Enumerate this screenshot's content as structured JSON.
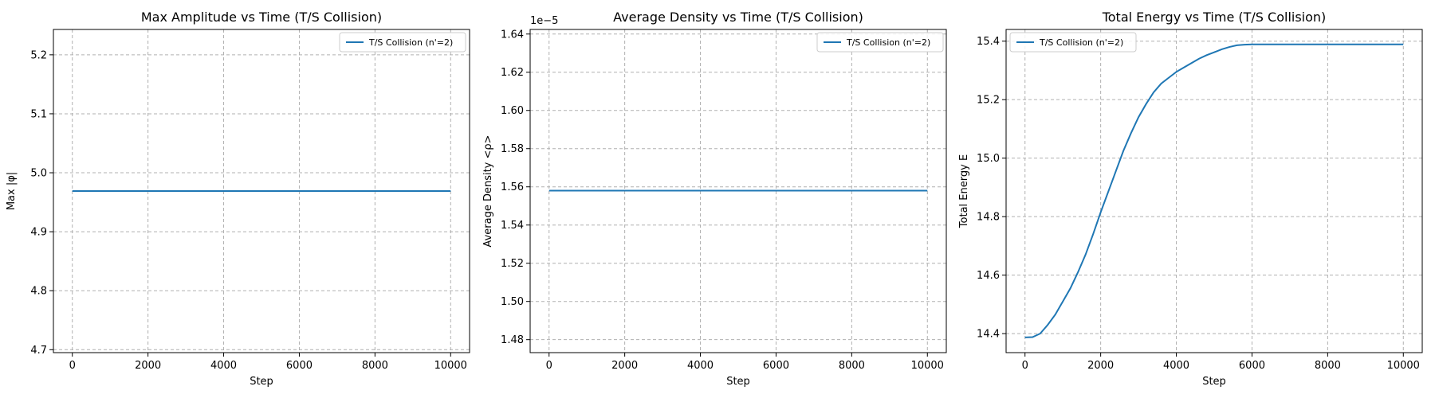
{
  "colors": {
    "series": "#1f77b4"
  },
  "chart_data": [
    {
      "type": "line",
      "title": "Max Amplitude vs Time (T/S Collision)",
      "xlabel": "Step",
      "ylabel": "Max |φ|",
      "xlim": [
        -500,
        10500
      ],
      "ylim": [
        4.695,
        5.243
      ],
      "xticks": [
        0,
        2000,
        4000,
        6000,
        8000,
        10000
      ],
      "xtick_labels": [
        "0",
        "2000",
        "4000",
        "6000",
        "8000",
        "10000"
      ],
      "yticks": [
        4.7,
        4.8,
        4.9,
        5.0,
        5.1,
        5.2
      ],
      "ytick_labels": [
        "4.7",
        "4.8",
        "4.9",
        "5.0",
        "5.1",
        "5.2"
      ],
      "grid": true,
      "legend_position": "upper-right",
      "series": [
        {
          "name": "T/S Collision (n'=2)",
          "x": [
            0,
            10000
          ],
          "y": [
            4.969,
            4.969
          ]
        }
      ]
    },
    {
      "type": "line",
      "title": "Average Density vs Time (T/S Collision)",
      "xlabel": "Step",
      "ylabel": "Average Density <ρ>",
      "offset_text": "1e−5",
      "xlim": [
        -500,
        10500
      ],
      "ylim": [
        1.4732,
        1.6424
      ],
      "xticks": [
        0,
        2000,
        4000,
        6000,
        8000,
        10000
      ],
      "xtick_labels": [
        "0",
        "2000",
        "4000",
        "6000",
        "8000",
        "10000"
      ],
      "yticks": [
        1.48,
        1.5,
        1.52,
        1.54,
        1.56,
        1.58,
        1.6,
        1.62,
        1.64
      ],
      "ytick_labels": [
        "1.48",
        "1.50",
        "1.52",
        "1.54",
        "1.56",
        "1.58",
        "1.60",
        "1.62",
        "1.64"
      ],
      "grid": true,
      "legend_position": "upper-right",
      "series": [
        {
          "name": "T/S Collision (n'=2)",
          "x": [
            0,
            10000
          ],
          "y": [
            1.558,
            1.558
          ]
        }
      ]
    },
    {
      "type": "line",
      "title": "Total Energy vs Time (T/S Collision)",
      "xlabel": "Step",
      "ylabel": "Total Energy E",
      "xlim": [
        -500,
        10500
      ],
      "ylim": [
        14.335,
        15.44
      ],
      "xticks": [
        0,
        2000,
        4000,
        6000,
        8000,
        10000
      ],
      "xtick_labels": [
        "0",
        "2000",
        "4000",
        "6000",
        "8000",
        "10000"
      ],
      "yticks": [
        14.4,
        14.6,
        14.8,
        15.0,
        15.2,
        15.4
      ],
      "ytick_labels": [
        "14.4",
        "14.6",
        "14.8",
        "15.0",
        "15.2",
        "15.4"
      ],
      "grid": true,
      "legend_position": "upper-left",
      "series": [
        {
          "name": "T/S Collision (n'=2)",
          "x": [
            0,
            200,
            400,
            600,
            800,
            1000,
            1200,
            1400,
            1600,
            1800,
            2000,
            2200,
            2400,
            2600,
            2800,
            3000,
            3200,
            3400,
            3600,
            3800,
            4000,
            4200,
            4400,
            4600,
            4800,
            5000,
            5200,
            5400,
            5600,
            5800,
            6000,
            7000,
            8000,
            9000,
            10000
          ],
          "y": [
            14.387,
            14.388,
            14.4,
            14.43,
            14.465,
            14.51,
            14.555,
            14.61,
            14.67,
            14.74,
            14.815,
            14.885,
            14.955,
            15.025,
            15.085,
            15.14,
            15.185,
            15.225,
            15.255,
            15.275,
            15.295,
            15.31,
            15.325,
            15.34,
            15.352,
            15.362,
            15.372,
            15.38,
            15.386,
            15.388,
            15.389,
            15.389,
            15.389,
            15.389,
            15.389
          ]
        }
      ]
    }
  ]
}
